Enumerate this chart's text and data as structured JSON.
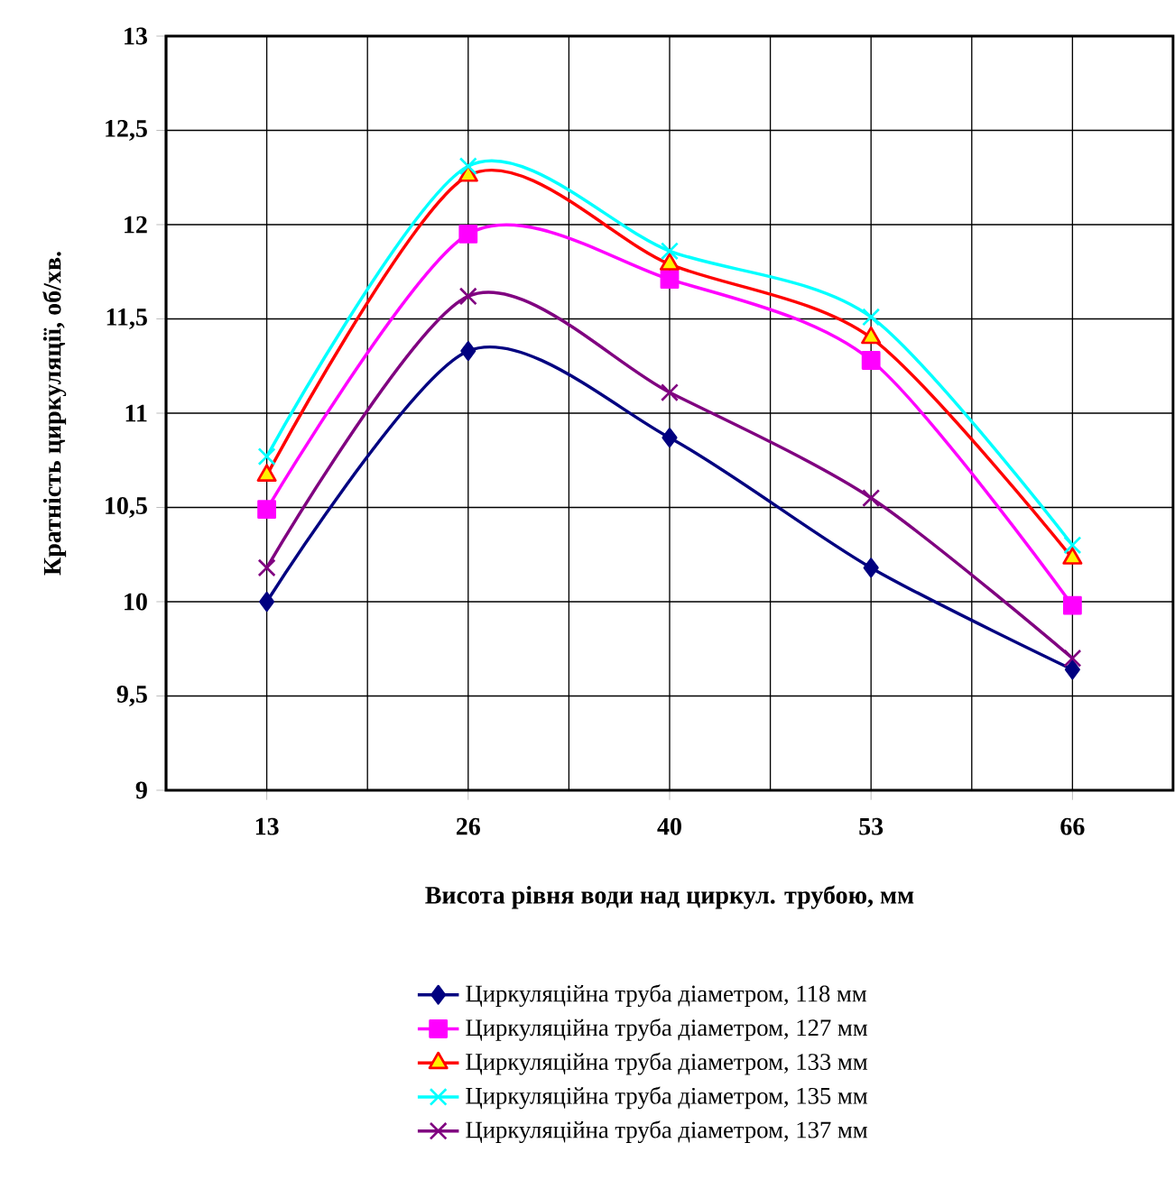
{
  "chart_data": {
    "type": "line",
    "xlabel": "Висота рівня води над циркул. трубою, мм",
    "ylabel": "Кратність циркуляції, об/хв.",
    "categories": [
      "13",
      "26",
      "40",
      "53",
      "66"
    ],
    "series": [
      {
        "name": "Циркуляційна труба діаметром, 118 мм",
        "color": "#000080",
        "marker": "diamond",
        "values": [
          10.0,
          11.33,
          10.87,
          10.18,
          9.64
        ]
      },
      {
        "name": "Циркуляційна труба діаметром, 127 мм",
        "color": "#ff00ff",
        "marker": "square",
        "values": [
          10.49,
          11.95,
          11.71,
          11.28,
          9.98
        ]
      },
      {
        "name": "Циркуляційна труба діаметром, 133 мм",
        "color": "#ff0000",
        "marker": "triangle",
        "values": [
          10.67,
          12.26,
          11.79,
          11.4,
          10.23
        ]
      },
      {
        "name": "Циркуляційна труба діаметром, 135 мм",
        "color": "#00ffff",
        "marker": "cross",
        "values": [
          10.77,
          12.31,
          11.86,
          11.51,
          10.3
        ]
      },
      {
        "name": "Циркуляційна труба діаметром, 137 мм",
        "color": "#800080",
        "marker": "cross",
        "values": [
          10.18,
          11.62,
          11.11,
          10.55,
          9.7
        ]
      }
    ],
    "ylim": [
      9,
      13
    ],
    "yticks": [
      9,
      {
        "value": 9.5,
        "label": "9,5"
      },
      10,
      {
        "value": 10.5,
        "label": "10,5"
      },
      11,
      {
        "value": 11.5,
        "label": "11,5"
      },
      12,
      {
        "value": 12.5,
        "label": "12,5"
      },
      13
    ],
    "grid": true,
    "legend": "bottom",
    "line_style": "solid"
  }
}
